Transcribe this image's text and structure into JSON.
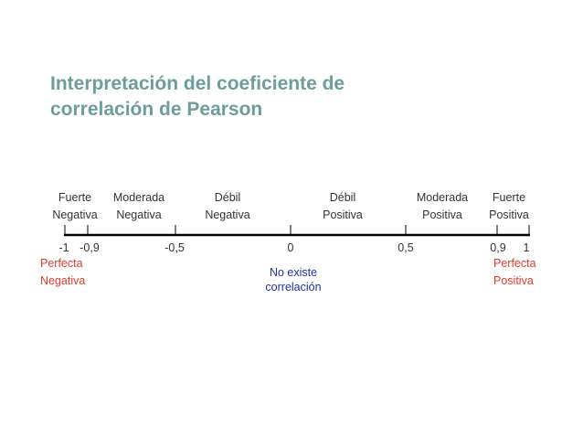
{
  "title": {
    "line1": "Interpretación del coeficiente de",
    "line2": "correlación de Pearson"
  },
  "categories": [
    {
      "line1": "Fuerte",
      "line2": "Negativa"
    },
    {
      "line1": "Moderada",
      "line2": "Negativa"
    },
    {
      "line1": "Débil",
      "line2": "Negativa"
    },
    {
      "line1": "Débil",
      "line2": "Positiva"
    },
    {
      "line1": "Moderada",
      "line2": "Positiva"
    },
    {
      "line1": "Fuerte",
      "line2": "Positiva"
    }
  ],
  "ticks": [
    "-1",
    "-0,9",
    "-0,5",
    "0",
    "0,5",
    "0,9",
    "1"
  ],
  "extremes": {
    "negative": {
      "line1": "Perfecta",
      "line2": "Negativa"
    },
    "positive": {
      "line1": "Perfecta",
      "line2": "Positiva"
    }
  },
  "zero_note": {
    "line1": "No existe",
    "line2": "correlación"
  },
  "colors": {
    "title": "#6b9e9a",
    "text": "#333333",
    "extreme": "#e03b2c",
    "zero_note": "#1f2fa8",
    "axis": "#000000"
  }
}
